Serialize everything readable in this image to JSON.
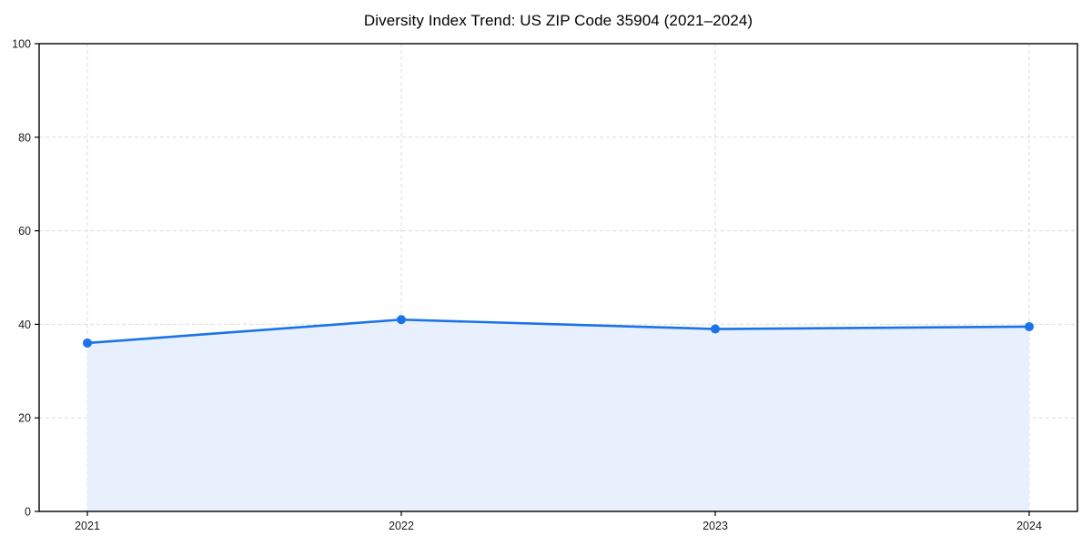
{
  "chart_data": {
    "type": "area",
    "title": "Diversity Index Trend: US ZIP Code 35904 (2021–2024)",
    "series_name": "Diversity Index",
    "categories": [
      "2021",
      "2022",
      "2023",
      "2024"
    ],
    "values": [
      36,
      41,
      39,
      39.5
    ],
    "xlabel": "",
    "ylabel": "",
    "ylim": [
      0,
      100
    ],
    "yticks": [
      0,
      20,
      40,
      60,
      80,
      100
    ],
    "grid": true,
    "grid_style": "dashed",
    "legend_position": "none",
    "colors": {
      "line": "#1a73e8",
      "marker": "#1a73e8",
      "area_fill": "#e8f0fd",
      "grid": "#dcdcdc",
      "spine": "#000000",
      "tick_text": "#1a1a1a",
      "background": "#ffffff"
    }
  }
}
